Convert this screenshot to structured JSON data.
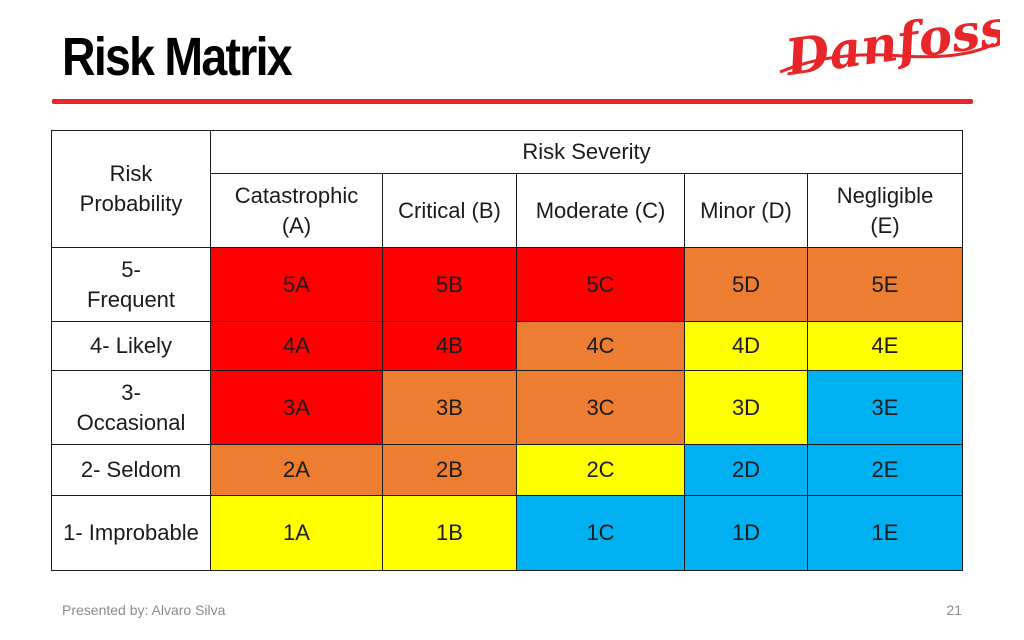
{
  "slide": {
    "title": "Risk Matrix",
    "logo_text": "Danfoss",
    "footer_left": "Presented by: Alvaro Silva",
    "page_number": "21"
  },
  "colors": {
    "red": "#ff0000",
    "orange": "#ed7d31",
    "yellow": "#ffff00",
    "blue": "#00b0f0",
    "brand": "#e8262a"
  },
  "matrix": {
    "corner_label": "Risk Probability",
    "severity_header": "Risk Severity",
    "columns": [
      "Catastrophic (A)",
      "Critical (B)",
      "Moderate (C)",
      "Minor (D)",
      "Negligible (E)"
    ],
    "rows": [
      {
        "label": "5- Frequent",
        "cells": [
          "5A",
          "5B",
          "5C",
          "5D",
          "5E"
        ]
      },
      {
        "label": "4- Likely",
        "cells": [
          "4A",
          "4B",
          "4C",
          "4D",
          "4E"
        ]
      },
      {
        "label": "3- Occasional",
        "cells": [
          "3A",
          "3B",
          "3C",
          "3D",
          "3E"
        ]
      },
      {
        "label": "2- Seldom",
        "cells": [
          "2A",
          "2B",
          "2C",
          "2D",
          "2E"
        ]
      },
      {
        "label": "1- Improbable",
        "cells": [
          "1A",
          "1B",
          "1C",
          "1D",
          "1E"
        ]
      }
    ]
  }
}
